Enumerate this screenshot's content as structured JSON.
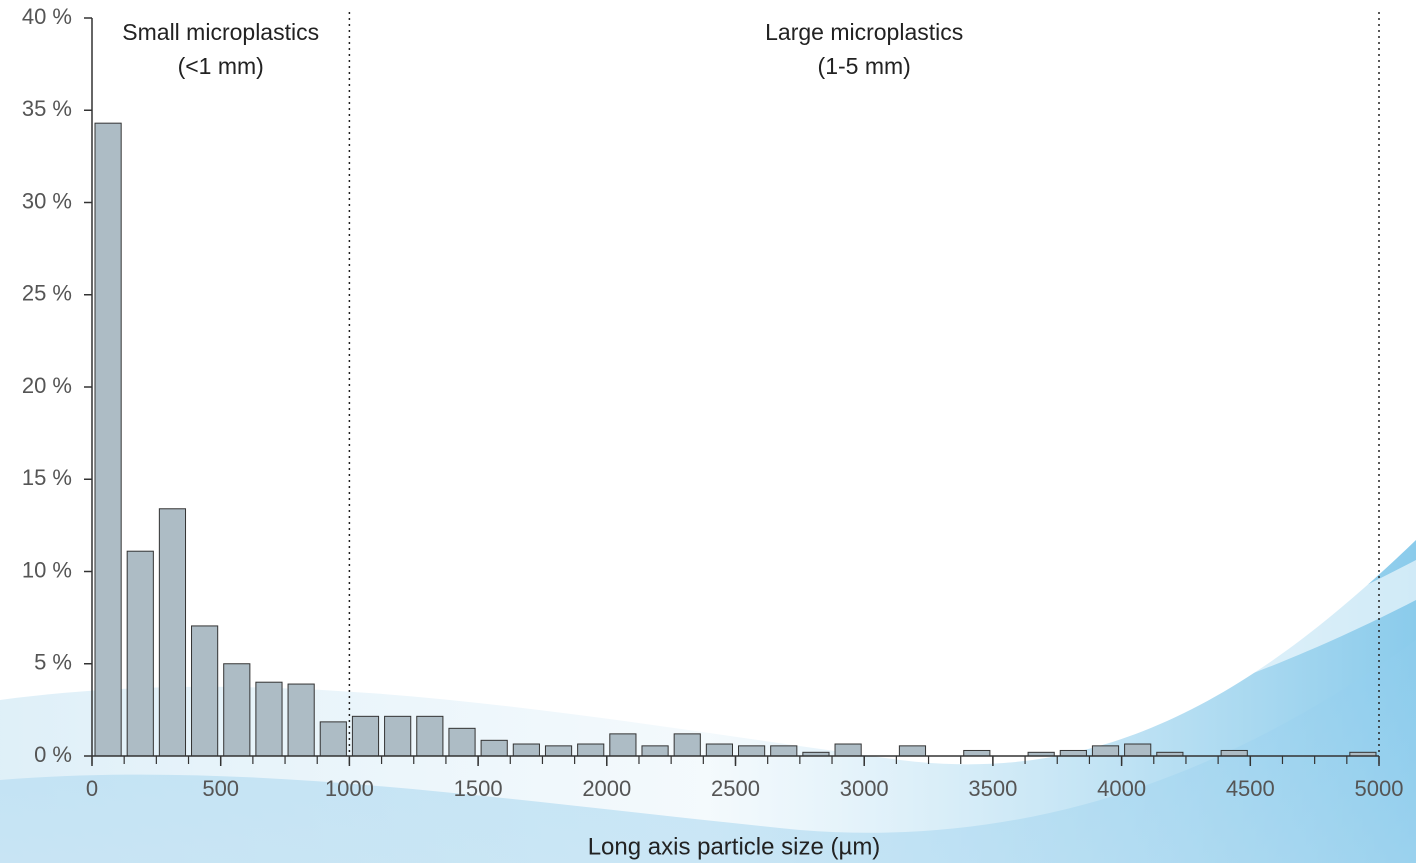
{
  "chart_data": {
    "type": "histogram",
    "annotations": [
      "Small microplastics",
      "(<1 mm)",
      "Large microplastics",
      "(1-5 mm)"
    ],
    "x_label": "Long axis particle size (µm)",
    "bins": [
      0,
      125,
      250,
      375,
      500,
      625,
      750,
      875,
      1000,
      1125,
      1250,
      1375,
      1500,
      1625,
      1750,
      1875,
      2000,
      2125,
      2250,
      2375,
      2500,
      2625,
      2750,
      2875,
      3000,
      3125,
      3250,
      3375,
      3500,
      3625,
      3750,
      3875,
      4000,
      4125,
      4250,
      4375,
      4500,
      4625,
      4750,
      4875,
      5000
    ],
    "values": [
      34.3,
      11.1,
      13.4,
      7.05,
      5.0,
      4.0,
      3.9,
      1.85,
      2.15,
      2.15,
      2.15,
      1.5,
      0.85,
      0.65,
      0.55,
      0.65,
      1.2,
      0.55,
      1.2,
      0.65,
      0.55,
      0.55,
      0.2,
      0.65,
      0,
      0.55,
      0,
      0.3,
      0,
      0.2,
      0.3,
      0.55,
      0.65,
      0.2,
      0,
      0.3,
      0,
      0,
      0,
      0.2
    ],
    "color": "#adbcc5",
    "dividers": [
      1000,
      5000
    ],
    "xlim": [
      0,
      5000
    ],
    "xticks": [
      0,
      500,
      1000,
      1500,
      2000,
      2500,
      3000,
      3500,
      4000,
      4500,
      5000
    ],
    "ylim": [
      0,
      40
    ],
    "yticks": [
      {
        "value": 0,
        "label": "0 %"
      },
      {
        "value": 5,
        "label": "5 %"
      },
      {
        "value": 10,
        "label": "10 %"
      },
      {
        "value": 15,
        "label": "15 %"
      },
      {
        "value": 20,
        "label": "20 %"
      },
      {
        "value": 25,
        "label": "25 %"
      },
      {
        "value": 30,
        "label": "30 %"
      },
      {
        "value": 35,
        "label": "35 %"
      },
      {
        "value": 40,
        "label": "40 %"
      }
    ]
  }
}
